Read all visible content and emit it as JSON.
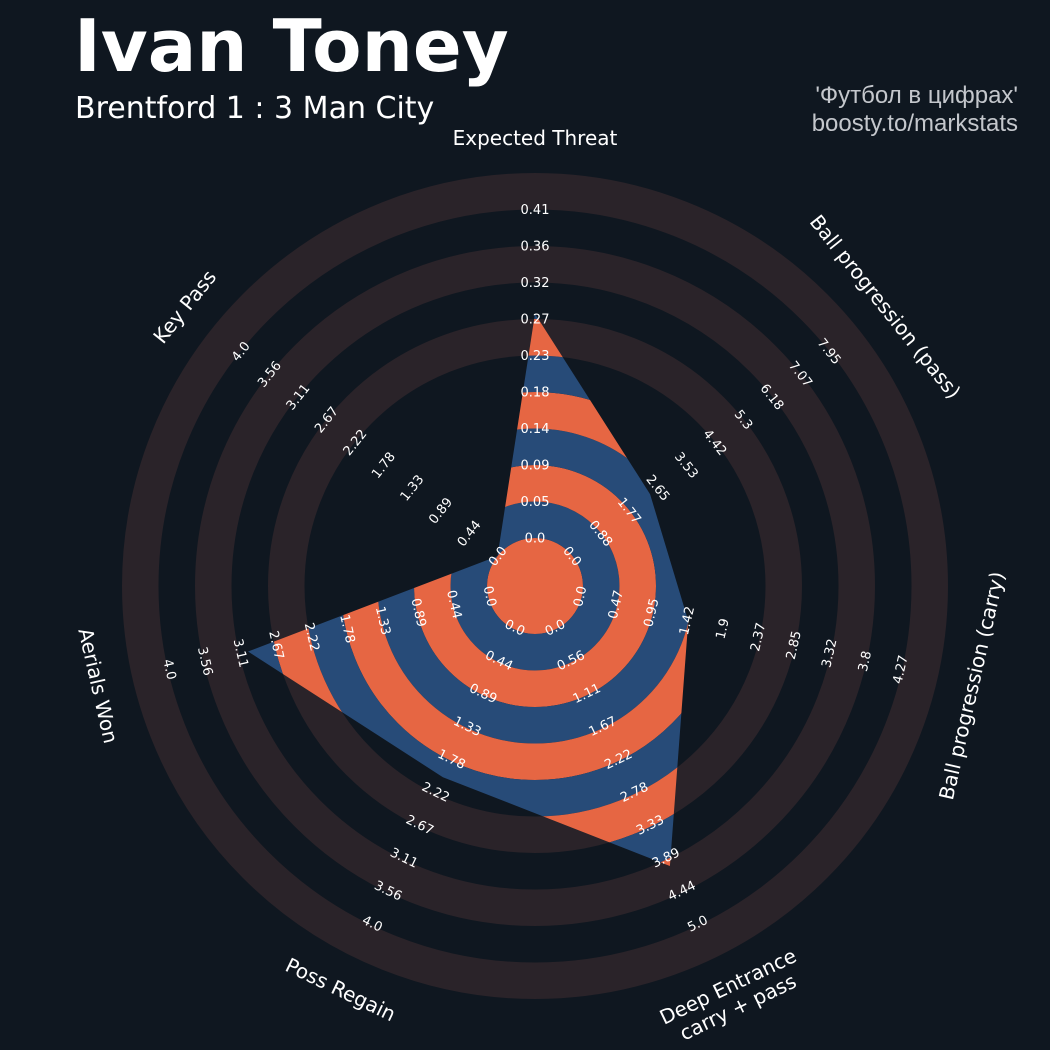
{
  "header": {
    "player": "Ivan Toney",
    "match": "Brentford 1 : 3 Man City",
    "credit_line1": "'Футбол в цифрах'",
    "credit_line2": "boosty.to/markstats"
  },
  "colors": {
    "background": "#0f1720",
    "band_ring": "#2a2329",
    "player_fill_a": "#e66643",
    "player_fill_b": "#274b78",
    "text": "#ffffff",
    "credit_text": "#c4c7cc"
  },
  "chart_data": {
    "type": "radar",
    "grid": "concentric alternating bands",
    "legend": "none",
    "axes": [
      {
        "label_lines": [
          "Expected Threat"
        ],
        "min": 0.0,
        "max": 0.41,
        "ticks": [
          "0.0",
          "0.05",
          "0.09",
          "0.14",
          "0.18",
          "0.23",
          "0.27",
          "0.32",
          "0.36",
          "0.41"
        ],
        "value": 0.28
      },
      {
        "label_lines": [
          "Ball progression (pass)"
        ],
        "min": 0.0,
        "max": 7.95,
        "ticks": [
          "0.0",
          "0.88",
          "1.77",
          "2.65",
          "3.53",
          "4.42",
          "5.3",
          "6.18",
          "7.07",
          "7.95"
        ],
        "value": 2.4
      },
      {
        "label_lines": [
          "Ball progression (carry)"
        ],
        "min": 0.0,
        "max": 4.27,
        "ticks": [
          "0.0",
          "0.47",
          "0.95",
          "1.42",
          "1.9",
          "2.37",
          "2.85",
          "3.32",
          "3.8",
          "4.27"
        ],
        "value": 1.42
      },
      {
        "label_lines": [
          "Deep Entrance",
          "carry + pass"
        ],
        "min": 0.0,
        "max": 5.0,
        "ticks": [
          "0.0",
          "0.56",
          "1.11",
          "1.67",
          "2.22",
          "2.78",
          "3.33",
          "3.89",
          "4.44",
          "5.0"
        ],
        "value": 4.0
      },
      {
        "label_lines": [
          "Poss Regain"
        ],
        "min": 0.0,
        "max": 4.0,
        "ticks": [
          "0.0",
          "0.44",
          "0.89",
          "1.33",
          "1.78",
          "2.22",
          "2.67",
          "3.11",
          "3.56",
          "4.0"
        ],
        "value": 2.0
      },
      {
        "label_lines": [
          "Aerials Won"
        ],
        "min": 0.0,
        "max": 4.0,
        "ticks": [
          "0.0",
          "0.44",
          "0.89",
          "1.33",
          "1.78",
          "2.22",
          "2.67",
          "3.11",
          "3.56",
          "4.0"
        ],
        "value": 3.0
      },
      {
        "label_lines": [
          "Key Pass"
        ],
        "min": 0.0,
        "max": 4.0,
        "ticks": [
          "0.0",
          "0.44",
          "0.89",
          "1.33",
          "1.78",
          "2.22",
          "2.67",
          "3.11",
          "3.56",
          "4.0"
        ],
        "value": 0.0
      }
    ]
  }
}
